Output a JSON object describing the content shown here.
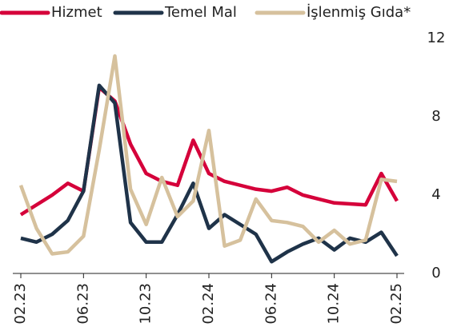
{
  "chart_data": {
    "type": "line",
    "categories": [
      "02.23",
      null,
      null,
      null,
      "06.23",
      null,
      null,
      null,
      "10.23",
      null,
      null,
      null,
      "02.24",
      null,
      null,
      null,
      "06.24",
      null,
      null,
      null,
      "10.24",
      null,
      null,
      null,
      "02.25"
    ],
    "series": [
      {
        "name": "Hizmet",
        "color": "#d5003a",
        "values": [
          3.0,
          3.5,
          4.0,
          4.6,
          4.2,
          9.5,
          8.8,
          6.6,
          5.1,
          4.7,
          4.5,
          6.8,
          5.1,
          4.7,
          4.5,
          4.3,
          4.2,
          4.4,
          4.0,
          3.8,
          3.6,
          3.55,
          3.5,
          5.1,
          3.7
        ]
      },
      {
        "name": "Temel Mal",
        "color": "#1f3349",
        "values": [
          1.8,
          1.6,
          2.0,
          2.7,
          4.2,
          9.6,
          8.7,
          2.6,
          1.6,
          1.6,
          3.0,
          4.6,
          2.3,
          3.0,
          2.5,
          2.0,
          0.6,
          1.1,
          1.5,
          1.8,
          1.2,
          1.8,
          1.6,
          2.1,
          0.9
        ]
      },
      {
        "name": "İşlenmiş Gıda*",
        "color": "#d6c19d",
        "values": [
          4.5,
          2.3,
          1.0,
          1.1,
          1.9,
          6.3,
          11.1,
          4.3,
          2.5,
          4.9,
          2.9,
          3.7,
          7.3,
          1.4,
          1.7,
          3.8,
          2.7,
          2.6,
          2.4,
          1.6,
          2.2,
          1.5,
          1.7,
          4.8,
          4.7
        ]
      }
    ],
    "ylim": [
      0,
      12
    ],
    "yticks": [
      0,
      4,
      8,
      12
    ]
  }
}
